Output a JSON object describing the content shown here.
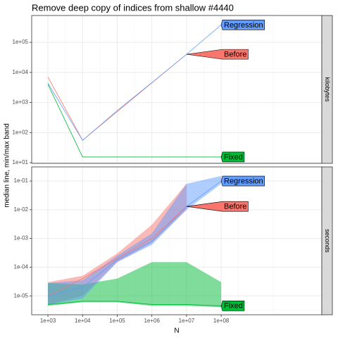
{
  "title": "Remove deep copy of indices from shallow #4440",
  "x_label": "N",
  "y_label": "median line, min/max band",
  "chart_data": [
    {
      "type": "line",
      "facet": "kilobytes",
      "log_x": true,
      "log_y": true,
      "grid": true,
      "xlim": [
        340,
        80000000000
      ],
      "xticks": [
        1000,
        10000,
        100000,
        1000000,
        10000000,
        100000000
      ],
      "ylim": [
        9.5,
        780000
      ],
      "yticks": [
        {
          "value": 10,
          "label": "1e+01"
        },
        {
          "value": 100,
          "label": "1e+02"
        },
        {
          "value": 1000,
          "label": "1e+03"
        },
        {
          "value": 10000,
          "label": "1e+04"
        },
        {
          "value": 100000,
          "label": "1e+05"
        }
      ],
      "series": [
        {
          "name": "Before",
          "color": "#f8766d",
          "x": [
            1000,
            10000,
            100000,
            1000000,
            10000000
          ],
          "values": [
            7000,
            56,
            500,
            4500,
            40000
          ]
        },
        {
          "name": "Fixed",
          "color": "#00ba38",
          "x": [
            1000,
            10000,
            100000,
            1000000,
            10000000,
            100000000
          ],
          "values": [
            4000,
            15.5,
            15.5,
            15.5,
            15.5,
            15.5
          ]
        },
        {
          "name": "Regression",
          "color": "#619cff",
          "x": [
            1000,
            10000,
            100000,
            1000000,
            10000000,
            100000000
          ],
          "values": [
            4400,
            55,
            540,
            4600,
            40000,
            380000
          ]
        }
      ]
    },
    {
      "type": "band",
      "facet": "seconds",
      "log_x": true,
      "log_y": true,
      "grid": true,
      "xlim": [
        340,
        80000000000
      ],
      "xticks": [
        {
          "value": 1000,
          "label": "1e+03"
        },
        {
          "value": 10000,
          "label": "1e+04"
        },
        {
          "value": 100000,
          "label": "1e+05"
        },
        {
          "value": 1000000,
          "label": "1e+06"
        },
        {
          "value": 10000000,
          "label": "1e+07"
        },
        {
          "value": 100000000,
          "label": "1e+08"
        }
      ],
      "ylim": [
        2.2e-06,
        0.31
      ],
      "yticks": [
        {
          "value": 1e-05,
          "label": "1e-05"
        },
        {
          "value": 0.0001,
          "label": "1e-04"
        },
        {
          "value": 0.001,
          "label": "1e-03"
        },
        {
          "value": 0.01,
          "label": "1e-02"
        },
        {
          "value": 0.1,
          "label": "1e-01"
        }
      ],
      "series": [
        {
          "name": "Before",
          "color": "#f8766d",
          "x": [
            1000,
            10000,
            100000,
            1000000,
            10000000
          ],
          "values": [
            1e-05,
            4e-05,
            0.0002,
            0.001,
            0.013
          ],
          "min": [
            5e-06,
            1e-05,
            0.00015,
            0.0007,
            0.01
          ],
          "max": [
            3e-05,
            5e-05,
            0.0003,
            0.003,
            0.08
          ]
        },
        {
          "name": "Fixed",
          "color": "#00ba38",
          "x": [
            1000,
            10000,
            100000,
            1000000,
            10000000,
            100000000
          ],
          "values": [
            5e-06,
            6.5e-06,
            6.5e-06,
            5e-06,
            5e-06,
            4.5e-06
          ],
          "min": [
            4.5e-06,
            6e-06,
            6e-06,
            4.5e-06,
            4.5e-06,
            4e-06
          ],
          "max": [
            2.8e-05,
            2.5e-05,
            4e-05,
            0.00015,
            0.00015,
            3e-05
          ]
        },
        {
          "name": "Regression",
          "color": "#619cff",
          "x": [
            1000,
            10000,
            100000,
            1000000,
            10000000,
            100000000
          ],
          "values": [
            1e-05,
            2e-05,
            0.00018,
            0.0008,
            0.013,
            0.1
          ],
          "min": [
            5e-06,
            8e-06,
            0.00015,
            0.0006,
            0.01,
            0.08
          ],
          "max": [
            2.8e-05,
            3.5e-05,
            0.00025,
            0.0015,
            0.08,
            0.15
          ]
        }
      ]
    }
  ]
}
